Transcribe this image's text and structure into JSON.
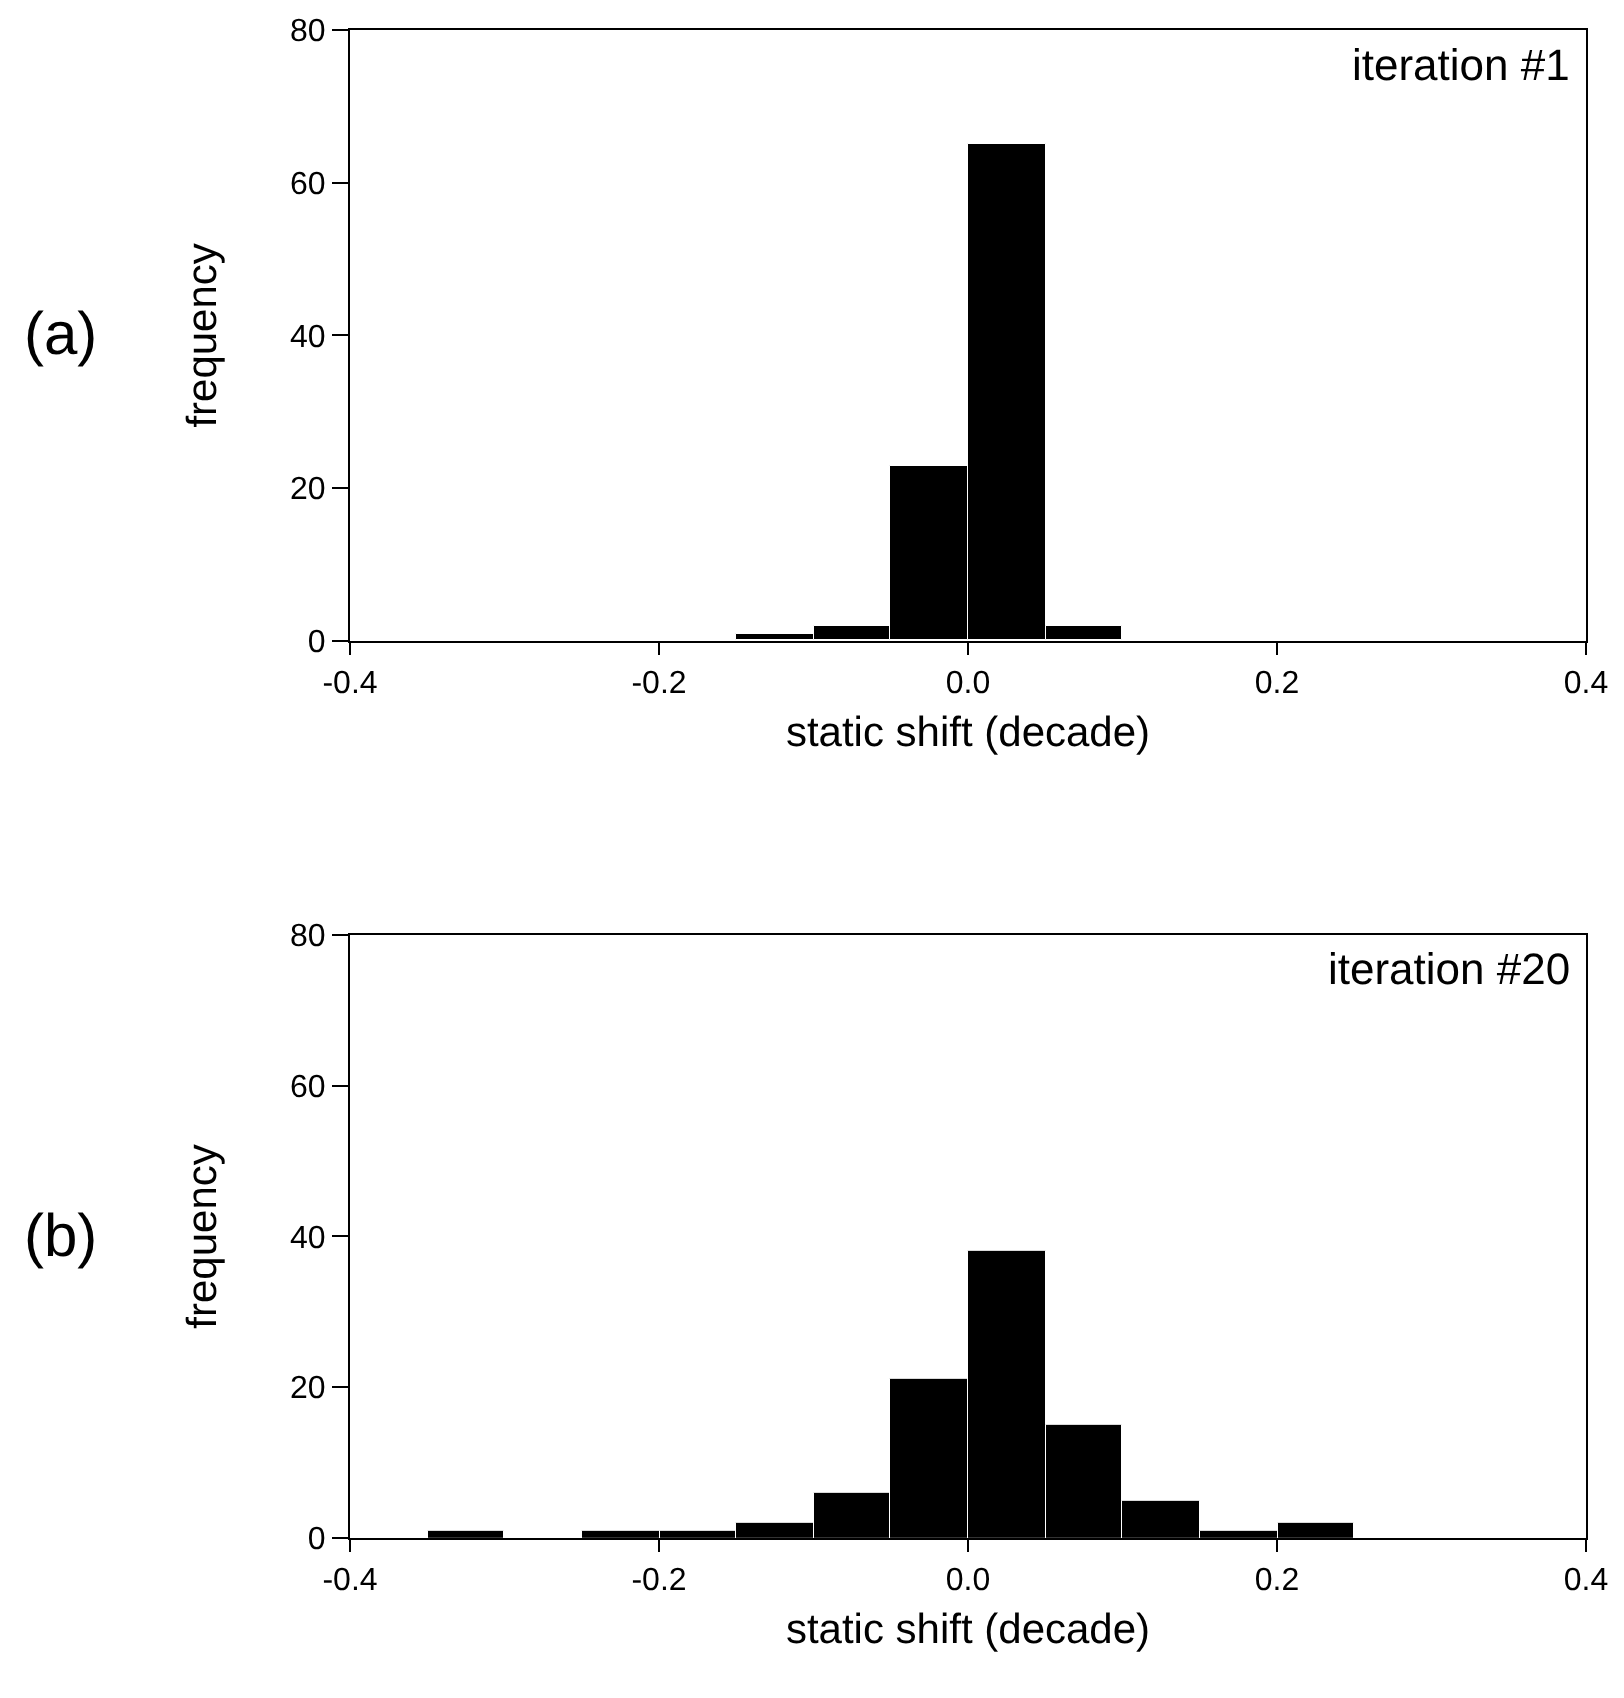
{
  "chart_data": [
    {
      "type": "histogram",
      "title": "(a)",
      "xlabel": "static shift (decade)",
      "ylabel": "frequency",
      "annotations": [
        "iteration #1"
      ],
      "color": "#000000",
      "bins": [
        -0.15,
        -0.1,
        -0.05,
        0.0,
        0.05,
        0.1
      ],
      "values": [
        1,
        2,
        23,
        65,
        2
      ],
      "xlim": [
        -0.4,
        0.4
      ],
      "xticks": [
        -0.4,
        -0.2,
        {
          "value": 0,
          "label": "0.0"
        },
        0.2,
        0.4
      ],
      "ylim": [
        0,
        80
      ],
      "yticks": [
        0,
        20,
        40,
        60,
        80
      ]
    },
    {
      "type": "histogram",
      "title": "(b)",
      "xlabel": "static shift (decade)",
      "ylabel": "frequency",
      "annotations": [
        "iteration #20"
      ],
      "color": "#000000",
      "bins": [
        -0.35,
        -0.3,
        -0.25,
        -0.2,
        -0.15,
        -0.1,
        -0.05,
        0.0,
        0.05,
        0.1,
        0.15,
        0.2,
        0.25
      ],
      "values": [
        1,
        0,
        1,
        1,
        2,
        6,
        21,
        38,
        15,
        5,
        1,
        2
      ],
      "xlim": [
        -0.4,
        0.4
      ],
      "xticks": [
        -0.4,
        -0.2,
        {
          "value": 0,
          "label": "0.0"
        },
        0.2,
        0.4
      ],
      "ylim": [
        0,
        80
      ],
      "yticks": [
        0,
        20,
        40,
        60,
        80
      ]
    }
  ]
}
